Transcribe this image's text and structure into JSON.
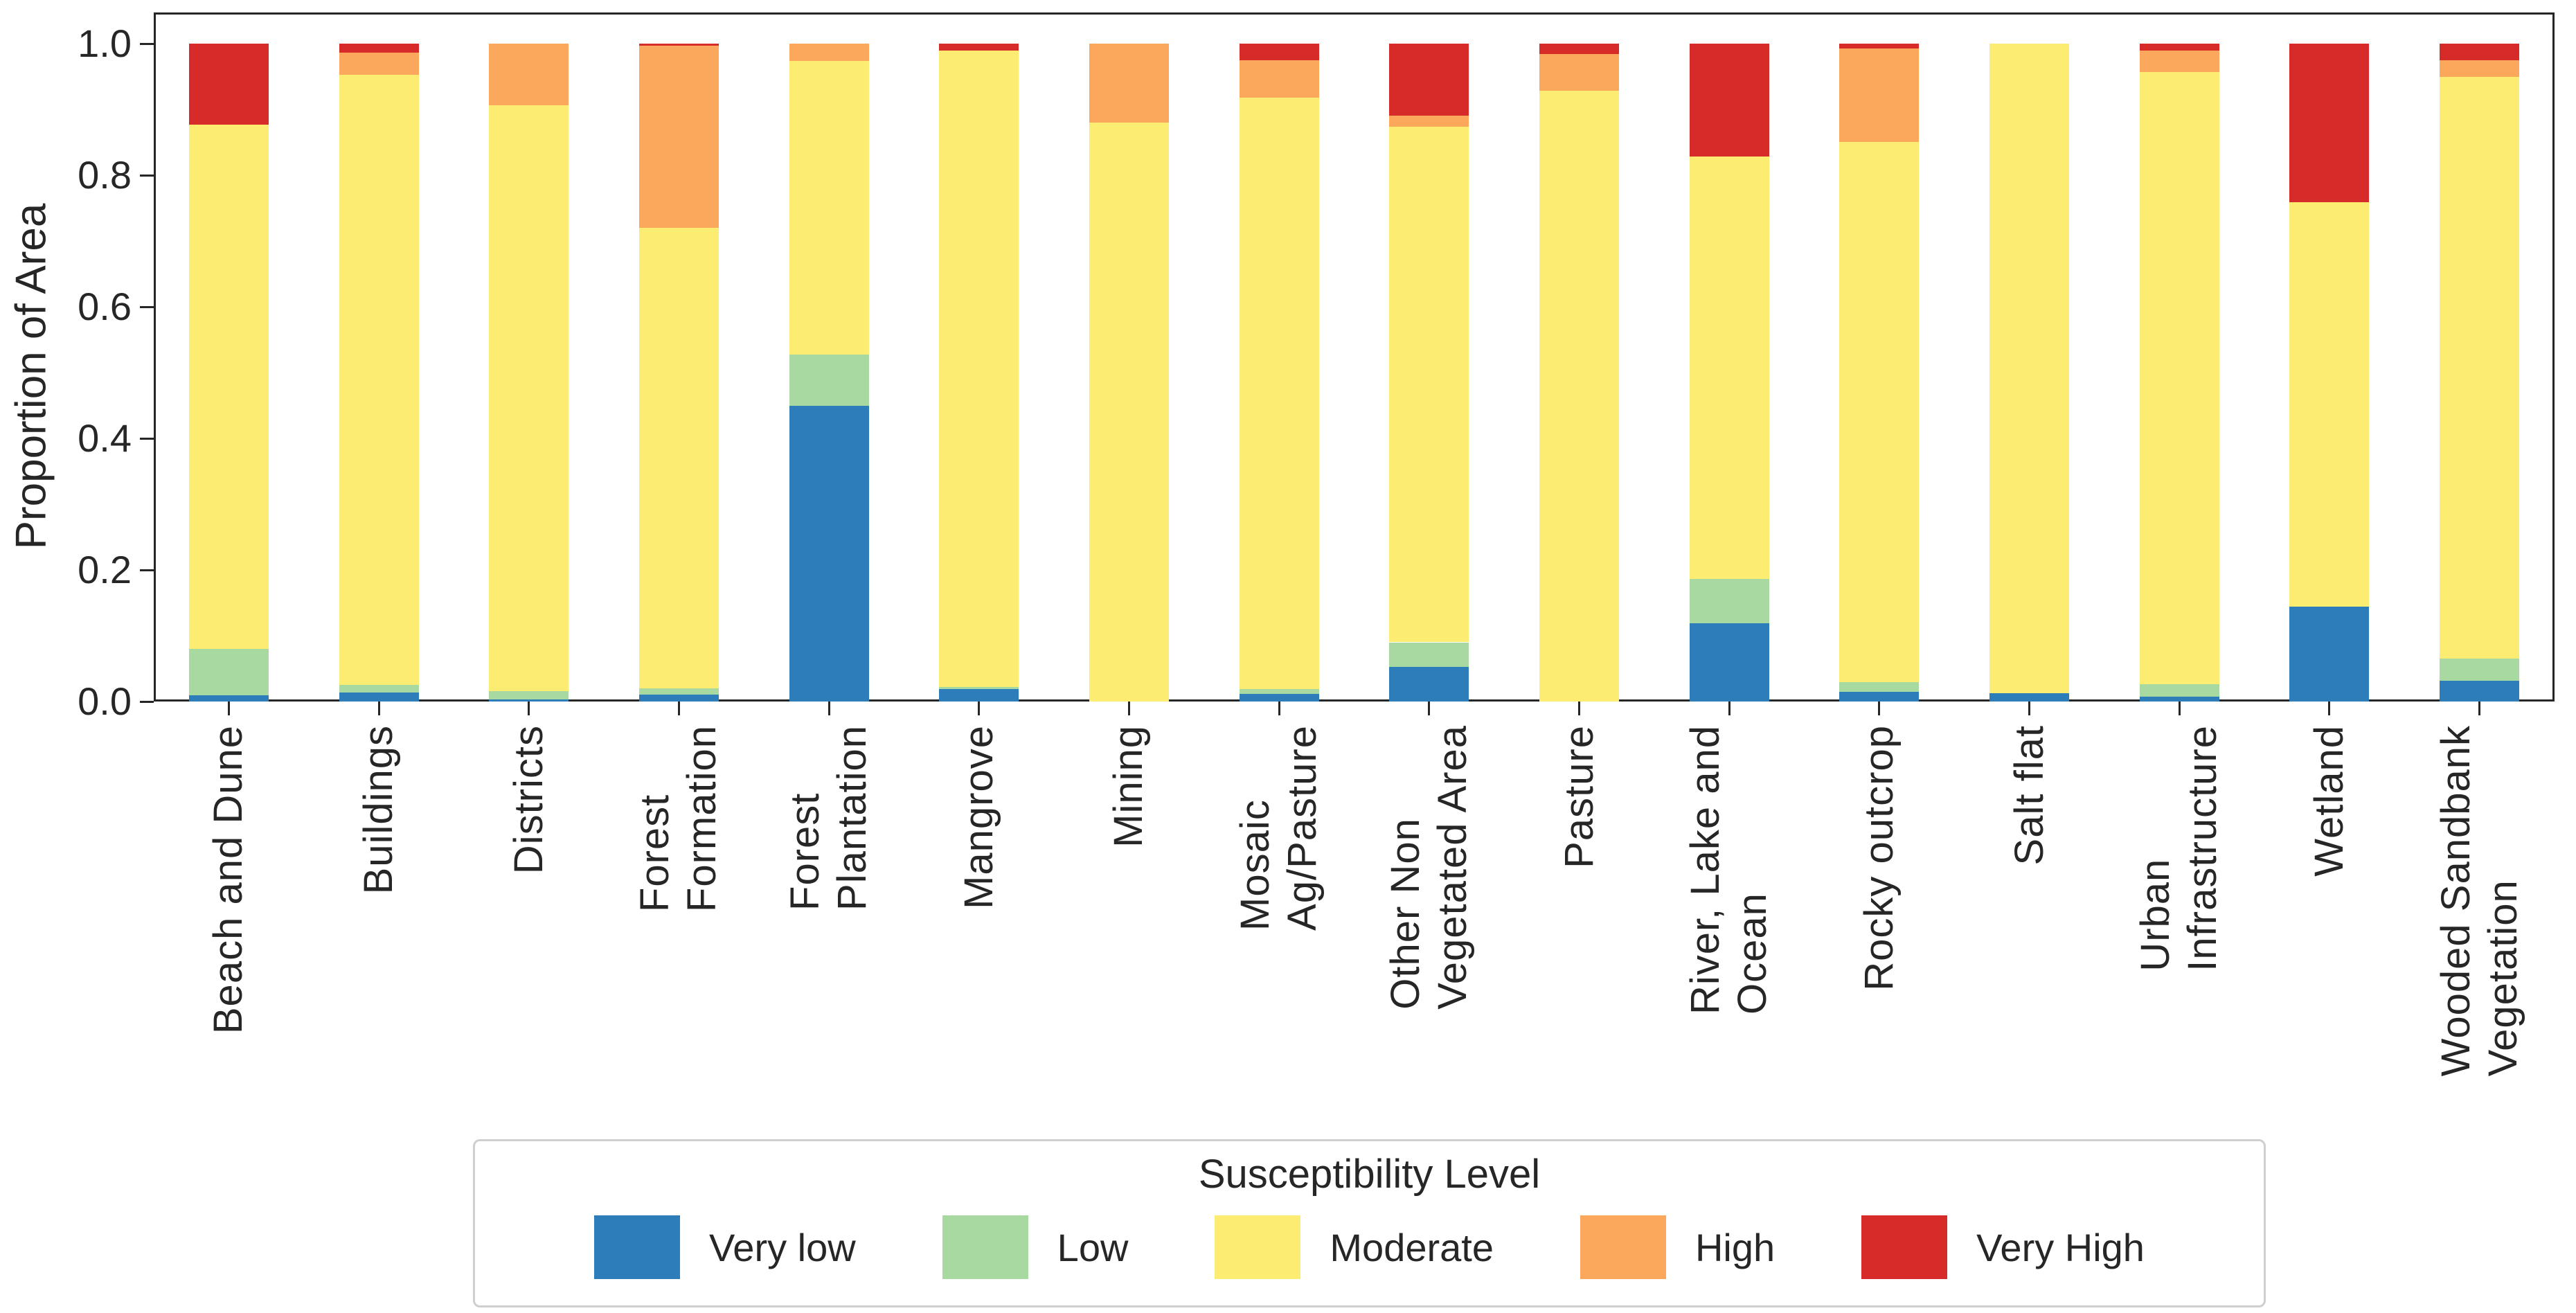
{
  "chart_data": {
    "type": "bar",
    "stacked": true,
    "ylabel": "Proportion of Area",
    "ylim": [
      0.0,
      1.0
    ],
    "yticks": [
      0.0,
      0.2,
      0.4,
      0.6,
      0.8,
      1.0
    ],
    "grid": false,
    "legend_title": "Susceptibility Level",
    "legend_position": "bottom",
    "categories": [
      "Beach and Dune",
      "Buildings",
      "Districts",
      "Forest\nFormation",
      "Forest\nPlantation",
      "Mangrove",
      "Mining",
      "Mosaic\nAg/Pasture",
      "Other Non\nVegetated Area",
      "Pasture",
      "River, Lake and\nOcean",
      "Rocky outcrop",
      "Salt flat",
      "Urban\nInfrastructure",
      "Wetland",
      "Wooded Sandbank\nVegetation"
    ],
    "series": [
      {
        "name": "Very low",
        "color": "#2d7dba",
        "values": [
          0.01,
          0.014,
          0.003,
          0.011,
          0.449,
          0.019,
          0.0,
          0.012,
          0.053,
          0.0,
          0.119,
          0.015,
          0.013,
          0.007,
          0.144,
          0.032
        ]
      },
      {
        "name": "Low",
        "color": "#a8d9a1",
        "values": [
          0.07,
          0.011,
          0.013,
          0.009,
          0.078,
          0.003,
          0.0,
          0.007,
          0.037,
          0.0,
          0.067,
          0.014,
          0.0,
          0.019,
          0.0,
          0.033
        ]
      },
      {
        "name": "Moderate",
        "color": "#fdec72",
        "values": [
          0.797,
          0.928,
          0.89,
          0.7,
          0.447,
          0.968,
          0.88,
          0.899,
          0.784,
          0.928,
          0.642,
          0.822,
          0.987,
          0.931,
          0.615,
          0.884
        ]
      },
      {
        "name": "High",
        "color": "#fba75c",
        "values": [
          0.0,
          0.033,
          0.094,
          0.277,
          0.026,
          0.0,
          0.12,
          0.057,
          0.017,
          0.056,
          0.0,
          0.142,
          0.0,
          0.033,
          0.0,
          0.026
        ]
      },
      {
        "name": "Very High",
        "color": "#d62b29",
        "values": [
          0.123,
          0.014,
          0.0,
          0.003,
          0.0,
          0.01,
          0.0,
          0.025,
          0.109,
          0.016,
          0.172,
          0.007,
          0.0,
          0.01,
          0.241,
          0.025
        ]
      }
    ]
  }
}
